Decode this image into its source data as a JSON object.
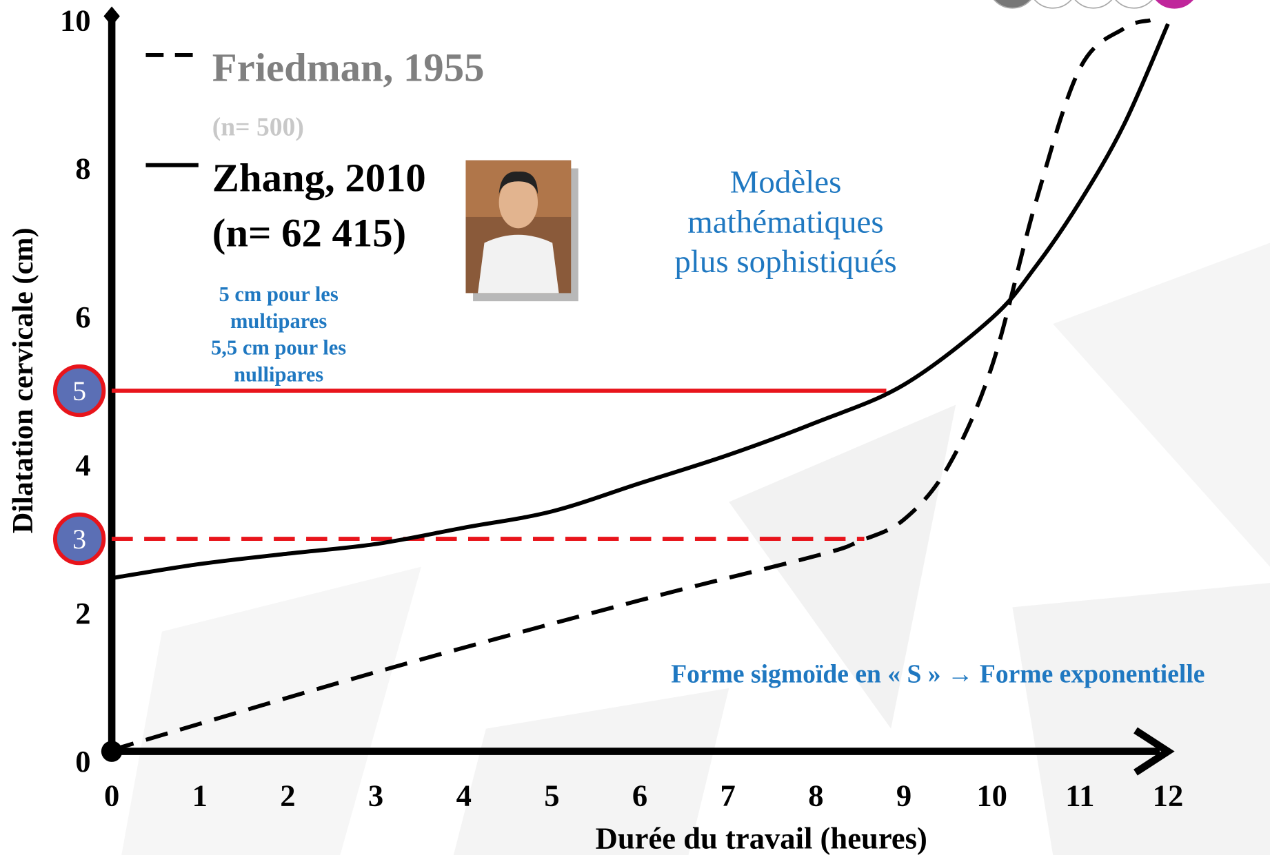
{
  "chart_data": {
    "type": "line",
    "x_label": "Durée du travail (heures)",
    "y_label": "Dilatation cervicale (cm)",
    "xlim": [
      0,
      12
    ],
    "ylim": [
      0,
      10
    ],
    "xticks": [
      0,
      1,
      2,
      3,
      4,
      5,
      6,
      7,
      8,
      9,
      10,
      11,
      12
    ],
    "yticks": [
      0,
      2,
      4,
      6,
      8,
      10
    ],
    "grid": false,
    "series": [
      {
        "name": "Friedman, 1955",
        "note": "(n= 500)",
        "color": "#000000",
        "style": "dashed",
        "legend_color": "#808080",
        "x": [
          0,
          3,
          6,
          8,
          8.5,
          9,
          9.5,
          10,
          10.5,
          11,
          11.5,
          11.8
        ],
        "values": [
          0.15,
          1.2,
          2.17,
          2.77,
          2.97,
          3.26,
          3.97,
          5.33,
          7.55,
          9.35,
          9.89,
          10.0
        ]
      },
      {
        "name": "Zhang, 2010",
        "note": "(n= 62 415)",
        "color": "#000000",
        "style": "solid",
        "legend_color": "#000000",
        "x": [
          0,
          1,
          2,
          3,
          4,
          5,
          6,
          7,
          8,
          9,
          10,
          10.5,
          11,
          11.5,
          12
        ],
        "values": [
          2.47,
          2.66,
          2.8,
          2.93,
          3.15,
          3.37,
          3.75,
          4.13,
          4.57,
          5.08,
          5.98,
          6.68,
          7.55,
          8.59,
          9.95
        ]
      }
    ],
    "reference_lines": [
      {
        "value": 5,
        "xrange": [
          0,
          8.8
        ],
        "style": "solid",
        "color": "#e8141b"
      },
      {
        "value": 3,
        "xrange": [
          0,
          8.55
        ],
        "style": "dashed",
        "color": "#e8141b"
      }
    ],
    "annotations": [
      {
        "lines": [
          "5 cm pour les",
          "multipares",
          "5,5 cm pour les",
          "nullipares"
        ]
      },
      {
        "lines": [
          "Modèles",
          "mathématiques",
          "plus sophistiqués"
        ]
      },
      {
        "lines": [
          "Forme sigmoïde en « S » → Forme exponentielle"
        ]
      }
    ]
  }
}
